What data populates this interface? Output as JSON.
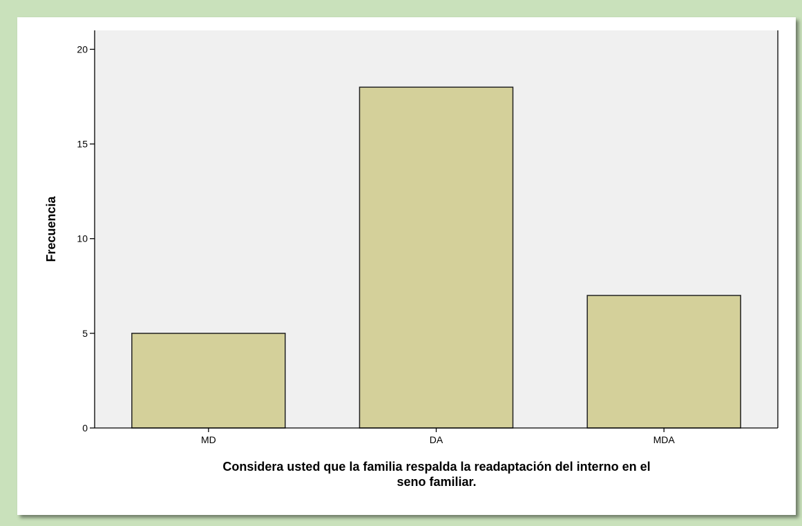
{
  "colors": {
    "page_background": "#c9e1bb",
    "card_background": "#ffffff",
    "plot_background": "#f0f0f0",
    "bar_fill": "#d4d09a",
    "bar_stroke": "#222222"
  },
  "chart_data": {
    "type": "bar",
    "categories": [
      "MD",
      "DA",
      "MDA"
    ],
    "values": [
      5,
      18,
      7
    ],
    "title": "",
    "xlabel_lines": [
      "Considera usted que la familia respalda la readaptación del interno en el",
      "seno familiar."
    ],
    "ylabel": "Frecuencia",
    "ylim": [
      0,
      21
    ],
    "yticks": [
      0,
      5,
      10,
      15,
      20
    ],
    "grid": false,
    "legend": "none"
  }
}
